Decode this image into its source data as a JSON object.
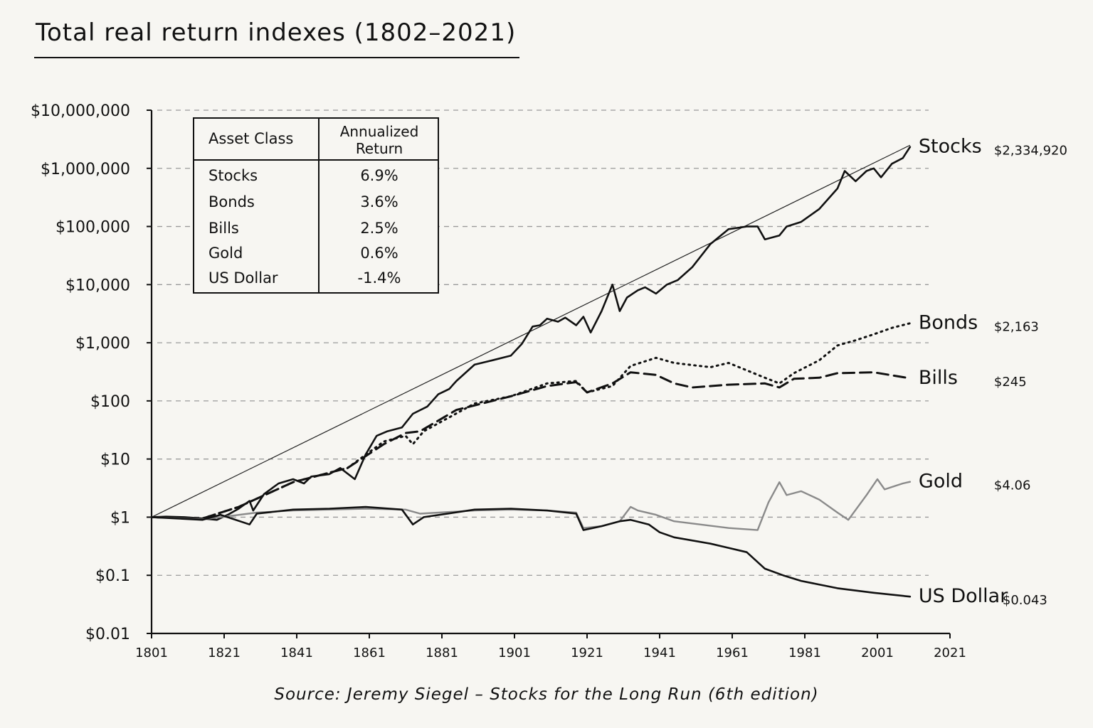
{
  "page": {
    "title": "Total real return indexes (1802–2021)",
    "source": "Source: Jeremy Siegel – Stocks for the Long Run (6th edition)"
  },
  "table": {
    "header_asset": "Asset Class",
    "header_return_line1": "Annualized",
    "header_return_line2": "Return",
    "rows": [
      {
        "asset": "Stocks",
        "return": "6.9%"
      },
      {
        "asset": "Bonds",
        "return": "3.6%"
      },
      {
        "asset": "Bills",
        "return": "2.5%"
      },
      {
        "asset": "Gold",
        "return": "0.6%"
      },
      {
        "asset": "US Dollar",
        "return": "-1.4%"
      }
    ]
  },
  "chart_data": {
    "type": "line",
    "title": "Total real return indexes (1802–2021)",
    "xlabel": "",
    "ylabel": "",
    "y_scale": "log",
    "xlim": [
      1801,
      2021
    ],
    "ylim": [
      0.01,
      10000000
    ],
    "x_ticks": [
      1801,
      1821,
      1841,
      1861,
      1881,
      1901,
      1921,
      1941,
      1961,
      1981,
      2001,
      2021
    ],
    "y_ticks": [
      {
        "value": 0.01,
        "label": "$0.01"
      },
      {
        "value": 0.1,
        "label": "$0.1"
      },
      {
        "value": 1,
        "label": "$1"
      },
      {
        "value": 10,
        "label": "$10"
      },
      {
        "value": 100,
        "label": "$100"
      },
      {
        "value": 1000,
        "label": "$1,000"
      },
      {
        "value": 10000,
        "label": "$10,000"
      },
      {
        "value": 100000,
        "label": "$100,000"
      },
      {
        "value": 1000000,
        "label": "$1,000,000"
      },
      {
        "value": 10000000,
        "label": "$10,000,000"
      }
    ],
    "grid": "horizontal dashed",
    "trend_line": {
      "from": [
        1801,
        1
      ],
      "to": [
        2010,
        2500000
      ]
    },
    "series": [
      {
        "name": "Stocks",
        "end_label": "$2,334,920",
        "style": "solid",
        "color": "#111111",
        "x": [
          1801,
          1805,
          1810,
          1815,
          1819,
          1822,
          1825,
          1828,
          1829,
          1832,
          1836,
          1840,
          1843,
          1845,
          1850,
          1853,
          1857,
          1860,
          1863,
          1866,
          1870,
          1873,
          1877,
          1880,
          1883,
          1885,
          1890,
          1895,
          1900,
          1903,
          1906,
          1908,
          1910,
          1913,
          1915,
          1918,
          1920,
          1922,
          1925,
          1928,
          1930,
          1932,
          1935,
          1937,
          1940,
          1943,
          1946,
          1950,
          1955,
          1960,
          1965,
          1968,
          1970,
          1974,
          1976,
          1980,
          1985,
          1990,
          1992,
          1995,
          1998,
          2000,
          2002,
          2005,
          2008,
          2010
        ],
        "y": [
          1,
          1.02,
          1,
          0.95,
          0.9,
          1.1,
          1.4,
          1.9,
          1.3,
          2.5,
          3.8,
          4.5,
          3.8,
          5,
          5.5,
          7,
          4.5,
          12,
          25,
          30,
          35,
          60,
          80,
          130,
          160,
          220,
          420,
          500,
          600,
          950,
          1900,
          2000,
          2600,
          2300,
          2700,
          2000,
          2800,
          1500,
          3500,
          10000,
          3500,
          6000,
          8000,
          9000,
          7000,
          10000,
          12000,
          20000,
          50000,
          90000,
          100000,
          100000,
          60000,
          70000,
          100000,
          120000,
          200000,
          450000,
          900000,
          600000,
          900000,
          1000000,
          700000,
          1200000,
          1500000,
          2334920
        ]
      },
      {
        "name": "Bonds",
        "end_label": "$2,163",
        "style": "dotted",
        "color": "#111111",
        "x": [
          1801,
          1815,
          1825,
          1840,
          1855,
          1865,
          1871,
          1873,
          1876,
          1890,
          1900,
          1910,
          1918,
          1921,
          1928,
          1933,
          1940,
          1945,
          1955,
          1960,
          1970,
          1974,
          1978,
          1985,
          1990,
          1995,
          2000,
          2005,
          2010
        ],
        "y": [
          1,
          0.95,
          1.5,
          4,
          7,
          20,
          25,
          18,
          30,
          90,
          120,
          200,
          220,
          140,
          180,
          400,
          550,
          450,
          380,
          450,
          250,
          200,
          300,
          500,
          900,
          1100,
          1400,
          1800,
          2163
        ]
      },
      {
        "name": "Bills",
        "end_label": "$245",
        "style": "dashed",
        "color": "#111111",
        "x": [
          1801,
          1815,
          1825,
          1840,
          1855,
          1865,
          1871,
          1875,
          1885,
          1900,
          1910,
          1918,
          1921,
          1928,
          1933,
          1940,
          1945,
          1950,
          1960,
          1970,
          1974,
          1978,
          1985,
          1990,
          2000,
          2010
        ],
        "y": [
          1,
          0.95,
          1.5,
          4,
          7,
          18,
          28,
          30,
          70,
          120,
          180,
          210,
          140,
          200,
          310,
          280,
          200,
          170,
          190,
          200,
          170,
          240,
          250,
          300,
          310,
          245
        ]
      },
      {
        "name": "Gold",
        "end_label": "$4.06",
        "style": "solid",
        "color": "#8a8a8a",
        "x": [
          1801,
          1815,
          1820,
          1830,
          1840,
          1850,
          1860,
          1871,
          1875,
          1890,
          1900,
          1910,
          1918,
          1920,
          1925,
          1930,
          1933,
          1935,
          1940,
          1945,
          1960,
          1968,
          1971,
          1974,
          1976,
          1980,
          1985,
          1990,
          1993,
          1998,
          2001,
          2003,
          2005,
          2008,
          2010
        ],
        "y": [
          1,
          0.92,
          1,
          1.2,
          1.3,
          1.35,
          1.4,
          1.35,
          1.15,
          1.3,
          1.35,
          1.3,
          1.2,
          0.65,
          0.7,
          0.85,
          1.5,
          1.3,
          1.1,
          0.85,
          0.65,
          0.6,
          1.8,
          4,
          2.4,
          2.8,
          2,
          1.2,
          0.9,
          2.4,
          4.5,
          3,
          3.3,
          3.8,
          4.06
        ]
      },
      {
        "name": "US Dollar",
        "end_label": "$0.043",
        "style": "solid",
        "color": "#111111",
        "x": [
          1801,
          1815,
          1820,
          1828,
          1830,
          1840,
          1850,
          1860,
          1870,
          1873,
          1876,
          1890,
          1900,
          1910,
          1918,
          1920,
          1925,
          1930,
          1933,
          1938,
          1941,
          1945,
          1955,
          1965,
          1970,
          1975,
          1980,
          1990,
          2000,
          2010
        ],
        "y": [
          1,
          0.9,
          1.1,
          0.75,
          1.15,
          1.35,
          1.4,
          1.5,
          1.35,
          0.75,
          1,
          1.35,
          1.4,
          1.3,
          1.15,
          0.6,
          0.7,
          0.85,
          0.9,
          0.75,
          0.55,
          0.45,
          0.35,
          0.25,
          0.13,
          0.1,
          0.08,
          0.06,
          0.05,
          0.043
        ]
      }
    ]
  }
}
